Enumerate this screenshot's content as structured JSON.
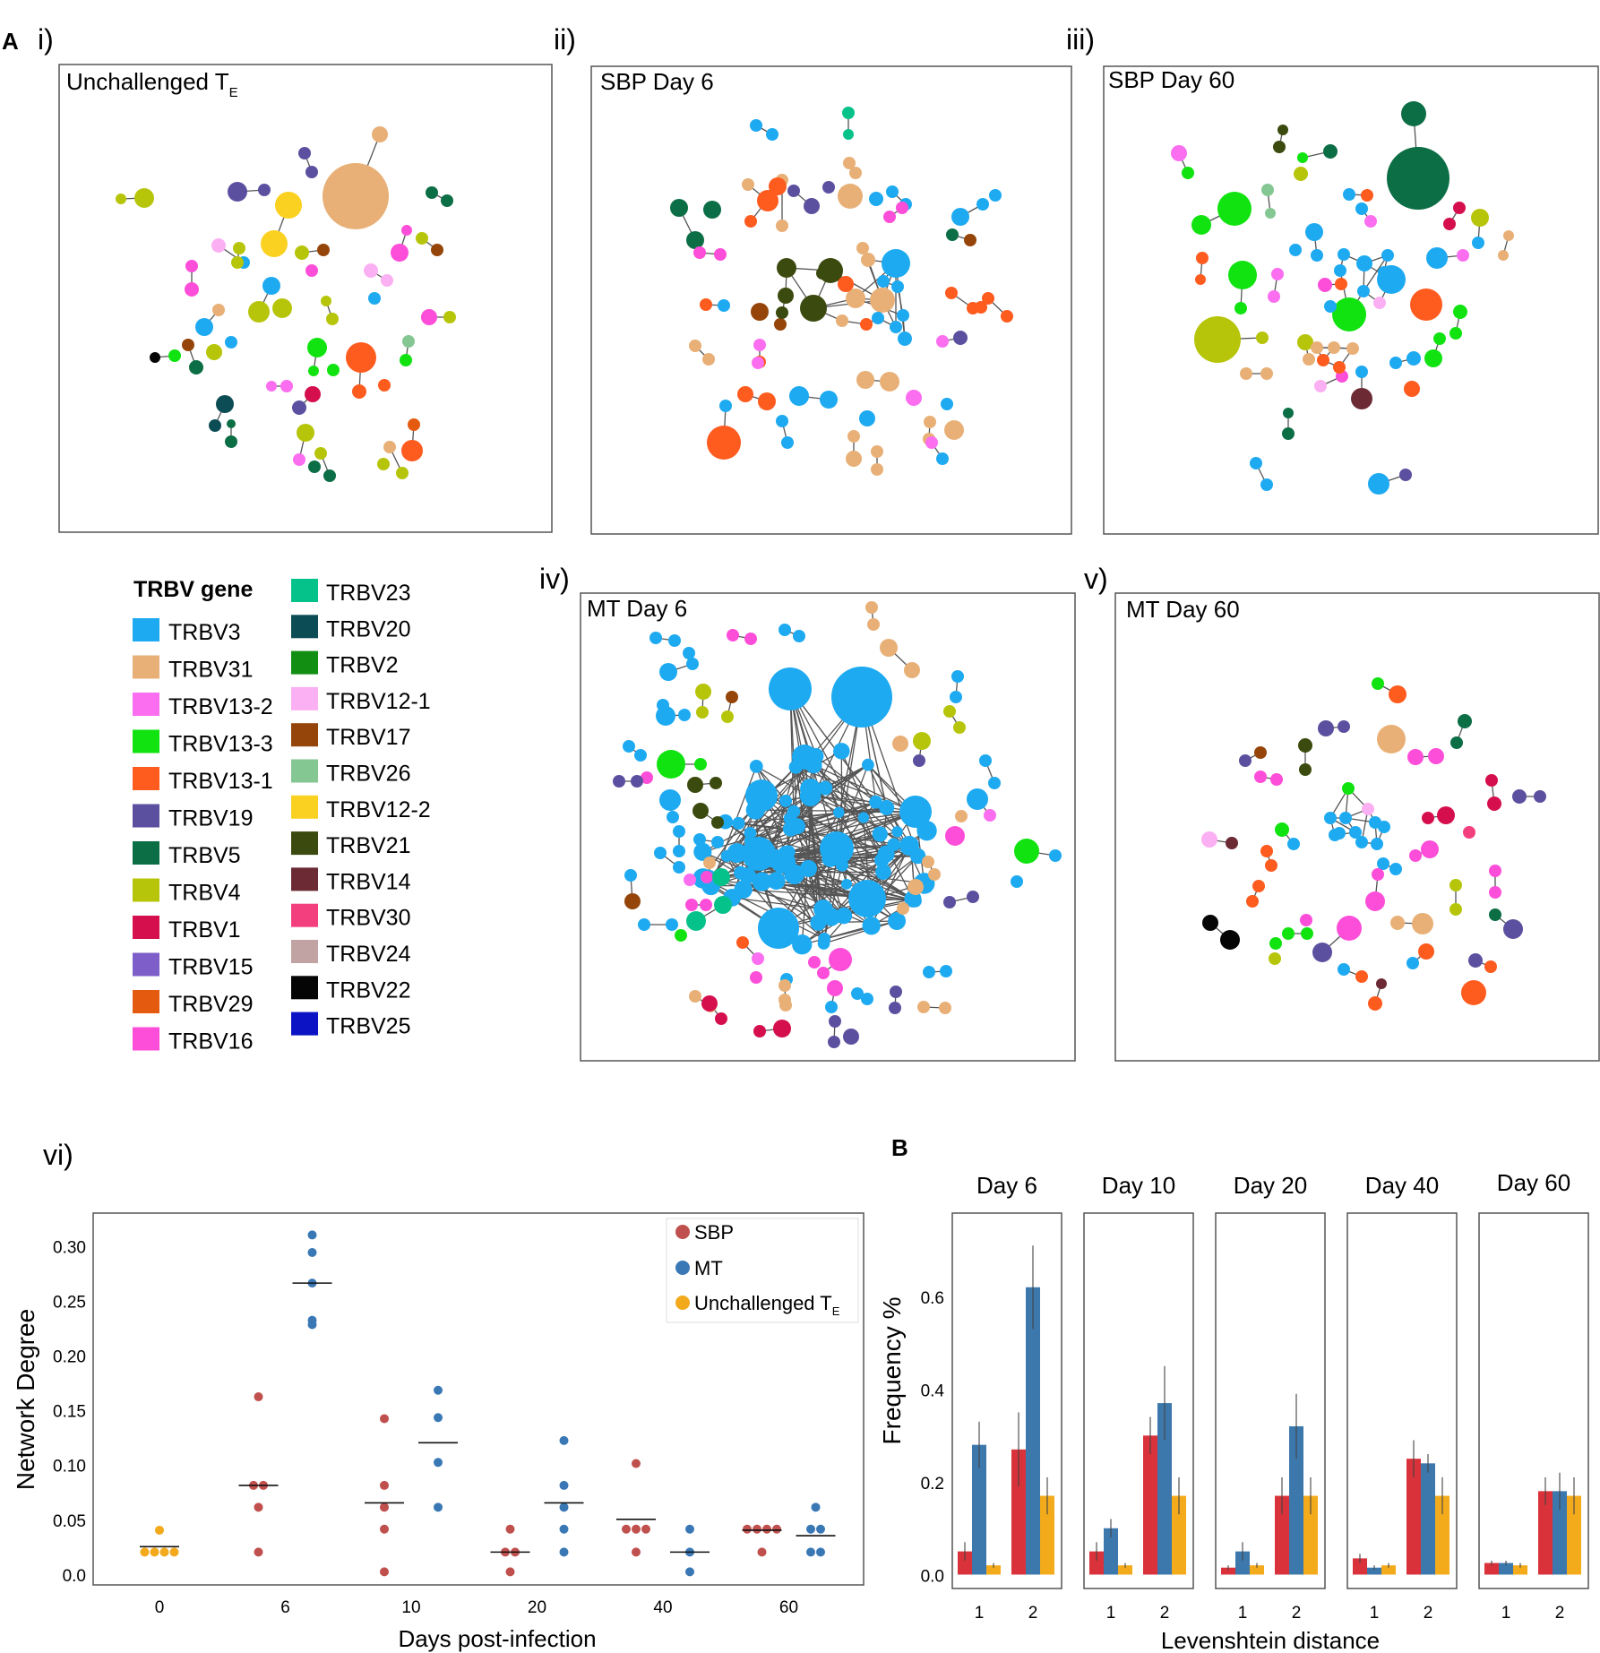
{
  "colors": {
    "SBP": "#c0504d",
    "MT": "#3a78b5",
    "Unchallenged": "#f2a91b",
    "barSBP": "#d9323a",
    "barMT": "#3d78ad",
    "barUnch": "#f3ab1c",
    "panelBorder": "#555555",
    "edge": "#555555"
  },
  "panel_a": {
    "letter": "A",
    "networks": [
      {
        "roman": "i)",
        "title": "Unchallenged T",
        "sub": "E"
      },
      {
        "roman": "ii)",
        "title": "SBP Day 6",
        "sub": ""
      },
      {
        "roman": "iii)",
        "title": "SBP Day 60",
        "sub": ""
      },
      {
        "roman": "iv)",
        "title": "MT Day 6",
        "sub": ""
      },
      {
        "roman": "v)",
        "title": "MT Day 60",
        "sub": ""
      }
    ],
    "legend": {
      "title": "TRBV gene",
      "genes": [
        {
          "name": "TRBV3",
          "color": "#1eaaf1"
        },
        {
          "name": "TRBV31",
          "color": "#e8b077"
        },
        {
          "name": "TRBV13-2",
          "color": "#fb6ef0"
        },
        {
          "name": "TRBV13-3",
          "color": "#11e311"
        },
        {
          "name": "TRBV13-1",
          "color": "#fe5b1f"
        },
        {
          "name": "TRBV19",
          "color": "#5b509f"
        },
        {
          "name": "TRBV5",
          "color": "#0c6e45"
        },
        {
          "name": "TRBV4",
          "color": "#b7c50a"
        },
        {
          "name": "TRBV1",
          "color": "#d50f4d"
        },
        {
          "name": "TRBV15",
          "color": "#7e5ec8"
        },
        {
          "name": "TRBV29",
          "color": "#e45b0f"
        },
        {
          "name": "TRBV16",
          "color": "#fd4ed9"
        },
        {
          "name": "TRBV23",
          "color": "#05c28a"
        },
        {
          "name": "TRBV20",
          "color": "#0c4d55"
        },
        {
          "name": "TRBV2",
          "color": "#128f12"
        },
        {
          "name": "TRBV12-1",
          "color": "#fbb0f3"
        },
        {
          "name": "TRBV17",
          "color": "#95450a"
        },
        {
          "name": "TRBV26",
          "color": "#85c793"
        },
        {
          "name": "TRBV12-2",
          "color": "#fbd121"
        },
        {
          "name": "TRBV21",
          "color": "#3b4a0e"
        },
        {
          "name": "TRBV14",
          "color": "#6b2a34"
        },
        {
          "name": "TRBV30",
          "color": "#f43f7f"
        },
        {
          "name": "TRBV24",
          "color": "#c1a3a3"
        },
        {
          "name": "TRBV22",
          "color": "#050505"
        },
        {
          "name": "TRBV25",
          "color": "#0b13c4"
        }
      ]
    }
  },
  "chart_data": [
    {
      "type": "scatter",
      "panel": "vi)",
      "xlabel": "Days post-infection",
      "ylabel": "Network Degree",
      "categories": [
        "0",
        "6",
        "10",
        "20",
        "40",
        "60"
      ],
      "ylim": [
        -0.01,
        0.33
      ],
      "yticks": [
        "0.0",
        "0.05",
        "0.10",
        "0.15",
        "0.20",
        "0.25",
        "0.30"
      ],
      "legend": [
        {
          "name": "SBP",
          "sub": ""
        },
        {
          "name": "MT",
          "sub": ""
        },
        {
          "name": "Unchallenged T",
          "sub": "E"
        }
      ],
      "series": [
        {
          "name": "SBP",
          "points": [
            {
              "day": "6",
              "values": [
                0.162,
                0.081,
                0.081,
                0.061,
                0.02
              ],
              "median": 0.081
            },
            {
              "day": "10",
              "values": [
                0.142,
                0.081,
                0.061,
                0.041,
                0.002
              ],
              "median": 0.065
            },
            {
              "day": "20",
              "values": [
                0.041,
                0.02,
                0.02,
                0.002
              ],
              "median": 0.02
            },
            {
              "day": "40",
              "values": [
                0.101,
                0.041,
                0.041,
                0.041,
                0.02
              ],
              "median": 0.05
            },
            {
              "day": "60",
              "values": [
                0.041,
                0.041,
                0.041,
                0.041,
                0.02
              ],
              "median": 0.04
            }
          ]
        },
        {
          "name": "MT",
          "points": [
            {
              "day": "6",
              "values": [
                0.31,
                0.294,
                0.266,
                0.232,
                0.228
              ],
              "median": 0.266
            },
            {
              "day": "10",
              "values": [
                0.168,
                0.143,
                0.102,
                0.061
              ],
              "median": 0.12
            },
            {
              "day": "20",
              "values": [
                0.122,
                0.081,
                0.061,
                0.041,
                0.02
              ],
              "median": 0.065
            },
            {
              "day": "40",
              "values": [
                0.041,
                0.02,
                0.002
              ],
              "median": 0.02
            },
            {
              "day": "60",
              "values": [
                0.061,
                0.041,
                0.041,
                0.02,
                0.02
              ],
              "median": 0.035
            }
          ]
        },
        {
          "name": "Unchallenged T_E",
          "points": [
            {
              "day": "0",
              "values": [
                0.04,
                0.02,
                0.02,
                0.02,
                0.02
              ],
              "median": 0.025
            }
          ]
        }
      ]
    },
    {
      "type": "bar",
      "panel": "B",
      "xlabel": "Levenshtein distance",
      "ylabel": "Frequency %",
      "categories": [
        "1",
        "2"
      ],
      "ylim": [
        -0.03,
        0.78
      ],
      "yticks": [
        "0.0",
        "0.2",
        "0.4",
        "0.6"
      ],
      "facets": [
        {
          "title": "Day 6",
          "SBP": [
            0.05,
            0.27
          ],
          "MT": [
            0.28,
            0.62
          ],
          "Unch": [
            0.02,
            0.17
          ],
          "err_SBP": [
            0.02,
            0.08
          ],
          "err_MT": [
            0.05,
            0.09
          ],
          "err_Unch": [
            0.005,
            0.04
          ]
        },
        {
          "title": "Day 10",
          "SBP": [
            0.05,
            0.3
          ],
          "MT": [
            0.1,
            0.37
          ],
          "Unch": [
            0.02,
            0.17
          ],
          "err_SBP": [
            0.02,
            0.04
          ],
          "err_MT": [
            0.02,
            0.08
          ],
          "err_Unch": [
            0.005,
            0.04
          ]
        },
        {
          "title": "Day 20",
          "SBP": [
            0.015,
            0.17
          ],
          "MT": [
            0.05,
            0.32
          ],
          "Unch": [
            0.02,
            0.17
          ],
          "err_SBP": [
            0.005,
            0.04
          ],
          "err_MT": [
            0.02,
            0.07
          ],
          "err_Unch": [
            0.005,
            0.04
          ]
        },
        {
          "title": "Day 40",
          "SBP": [
            0.035,
            0.25
          ],
          "MT": [
            0.015,
            0.24
          ],
          "Unch": [
            0.02,
            0.17
          ],
          "err_SBP": [
            0.01,
            0.04
          ],
          "err_MT": [
            0.005,
            0.02
          ],
          "err_Unch": [
            0.005,
            0.04
          ]
        },
        {
          "title": "Day 60",
          "SBP": [
            0.025,
            0.18
          ],
          "MT": [
            0.025,
            0.18
          ],
          "Unch": [
            0.02,
            0.17
          ],
          "err_SBP": [
            0.005,
            0.03
          ],
          "err_MT": [
            0.005,
            0.04
          ],
          "err_Unch": [
            0.005,
            0.04
          ]
        }
      ]
    }
  ]
}
